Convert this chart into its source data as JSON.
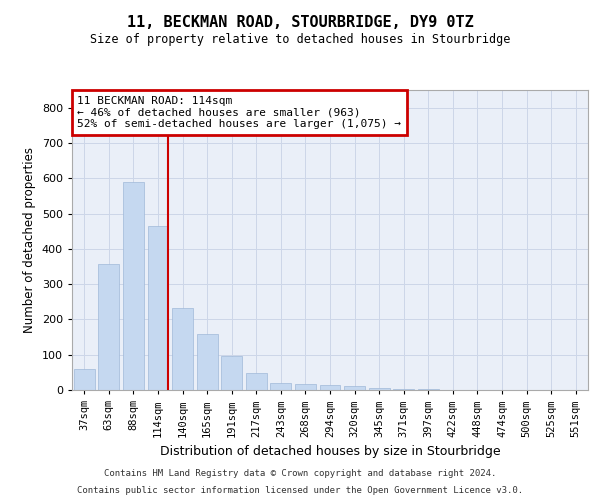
{
  "title": "11, BECKMAN ROAD, STOURBRIDGE, DY9 0TZ",
  "subtitle": "Size of property relative to detached houses in Stourbridge",
  "xlabel": "Distribution of detached houses by size in Stourbridge",
  "ylabel": "Number of detached properties",
  "categories": [
    "37sqm",
    "63sqm",
    "88sqm",
    "114sqm",
    "140sqm",
    "165sqm",
    "191sqm",
    "217sqm",
    "243sqm",
    "268sqm",
    "294sqm",
    "320sqm",
    "345sqm",
    "371sqm",
    "397sqm",
    "422sqm",
    "448sqm",
    "474sqm",
    "500sqm",
    "525sqm",
    "551sqm"
  ],
  "values": [
    60,
    357,
    588,
    465,
    232,
    160,
    95,
    48,
    20,
    18,
    15,
    12,
    7,
    4,
    2,
    1,
    1,
    1,
    1,
    1,
    1
  ],
  "bar_color": "#c5d8f0",
  "bar_edge_color": "#a0b8d8",
  "red_line_index": 3,
  "annotation_line1": "11 BECKMAN ROAD: 114sqm",
  "annotation_line2": "← 46% of detached houses are smaller (963)",
  "annotation_line3": "52% of semi-detached houses are larger (1,075) →",
  "annotation_box_color": "#ffffff",
  "annotation_box_edge": "#cc0000",
  "grid_color": "#cdd6e8",
  "background_color": "#eaeff8",
  "ylim": [
    0,
    850
  ],
  "yticks": [
    0,
    100,
    200,
    300,
    400,
    500,
    600,
    700,
    800
  ],
  "footer_line1": "Contains HM Land Registry data © Crown copyright and database right 2024.",
  "footer_line2": "Contains public sector information licensed under the Open Government Licence v3.0."
}
